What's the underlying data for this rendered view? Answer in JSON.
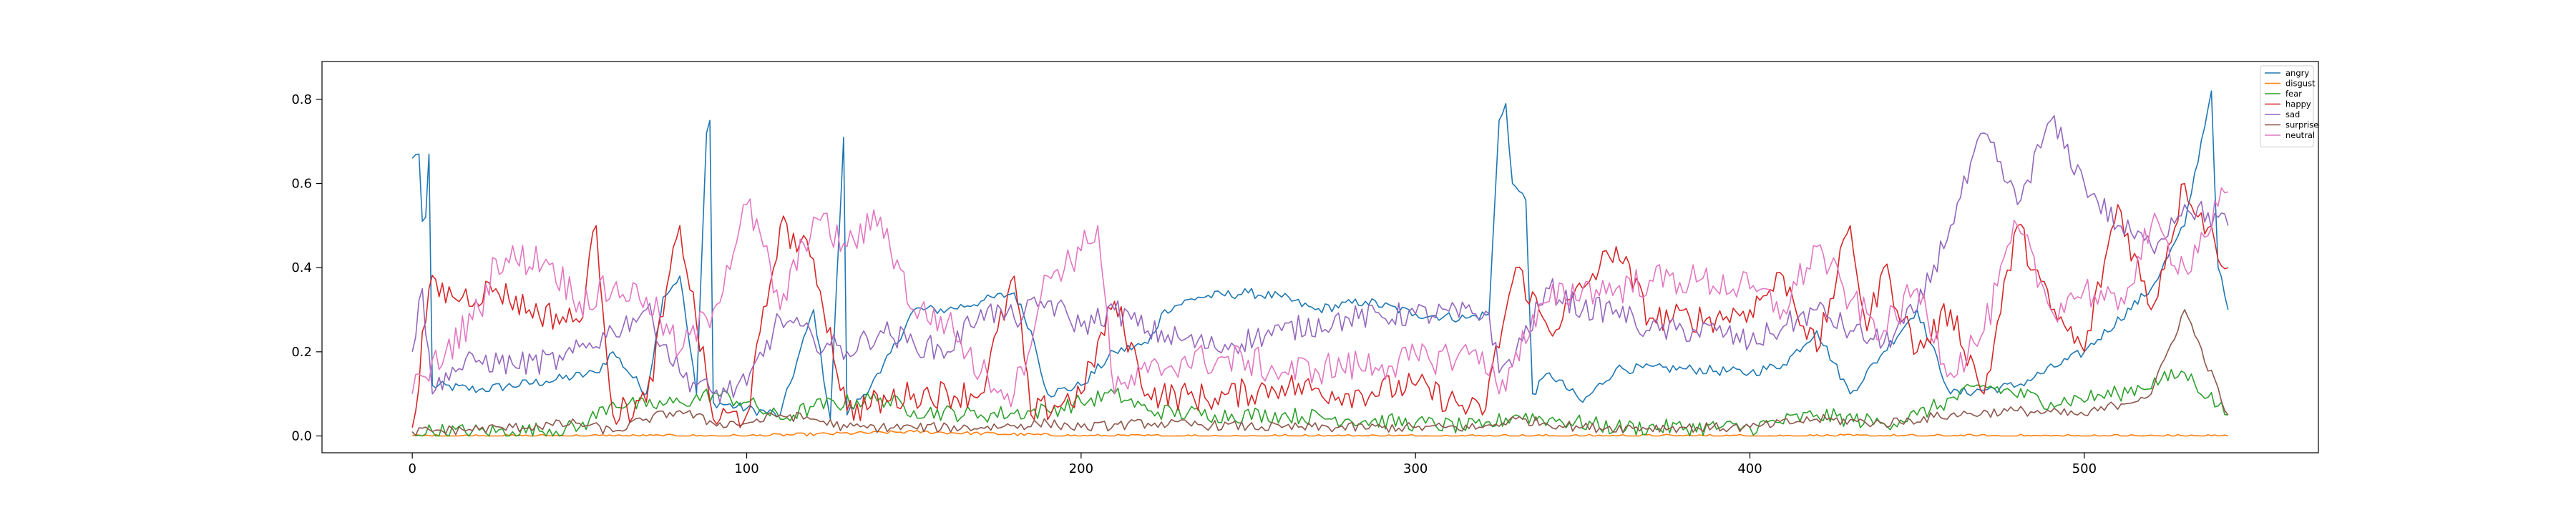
{
  "chart_data": {
    "type": "line",
    "title": "",
    "xlabel": "",
    "ylabel": "",
    "xlim": [
      -27,
      570
    ],
    "ylim": [
      -0.04,
      0.89
    ],
    "xticks": [
      0,
      100,
      200,
      300,
      400,
      500
    ],
    "yticks": [
      0.0,
      0.2,
      0.4,
      0.6,
      0.8
    ],
    "x_ticklabels": [
      "0",
      "100",
      "200",
      "300",
      "400",
      "500"
    ],
    "y_ticklabels": [
      "0.0",
      "0.2",
      "0.4",
      "0.6",
      "0.8"
    ],
    "grid": false,
    "legend_position": "top-right",
    "x_count": 544,
    "series": [
      {
        "name": "angry",
        "color": "#1f77b4",
        "keyframes": [
          [
            0,
            0.66
          ],
          [
            2,
            0.67
          ],
          [
            3,
            0.51
          ],
          [
            4,
            0.52
          ],
          [
            5,
            0.67
          ],
          [
            6,
            0.12
          ],
          [
            20,
            0.11
          ],
          [
            40,
            0.13
          ],
          [
            55,
            0.15
          ],
          [
            60,
            0.2
          ],
          [
            70,
            0.1
          ],
          [
            75,
            0.33
          ],
          [
            80,
            0.38
          ],
          [
            85,
            0.1
          ],
          [
            88,
            0.72
          ],
          [
            89,
            0.75
          ],
          [
            90,
            0.08
          ],
          [
            110,
            0.05
          ],
          [
            120,
            0.3
          ],
          [
            125,
            0.04
          ],
          [
            129,
            0.71
          ],
          [
            130,
            0.05
          ],
          [
            140,
            0.15
          ],
          [
            150,
            0.3
          ],
          [
            160,
            0.3
          ],
          [
            170,
            0.32
          ],
          [
            180,
            0.34
          ],
          [
            185,
            0.25
          ],
          [
            190,
            0.1
          ],
          [
            200,
            0.12
          ],
          [
            210,
            0.2
          ],
          [
            220,
            0.22
          ],
          [
            225,
            0.3
          ],
          [
            235,
            0.33
          ],
          [
            250,
            0.34
          ],
          [
            260,
            0.33
          ],
          [
            270,
            0.3
          ],
          [
            285,
            0.32
          ],
          [
            300,
            0.29
          ],
          [
            315,
            0.28
          ],
          [
            322,
            0.29
          ],
          [
            325,
            0.75
          ],
          [
            327,
            0.79
          ],
          [
            329,
            0.6
          ],
          [
            333,
            0.56
          ],
          [
            335,
            0.1
          ],
          [
            340,
            0.15
          ],
          [
            350,
            0.08
          ],
          [
            360,
            0.16
          ],
          [
            380,
            0.16
          ],
          [
            400,
            0.15
          ],
          [
            410,
            0.17
          ],
          [
            420,
            0.25
          ],
          [
            430,
            0.1
          ],
          [
            440,
            0.2
          ],
          [
            450,
            0.3
          ],
          [
            460,
            0.1
          ],
          [
            480,
            0.12
          ],
          [
            500,
            0.2
          ],
          [
            520,
            0.35
          ],
          [
            530,
            0.5
          ],
          [
            538,
            0.82
          ],
          [
            540,
            0.4
          ],
          [
            543,
            0.3
          ]
        ],
        "amp": 0.012
      },
      {
        "name": "disgust",
        "color": "#ff7f0e",
        "keyframes": [
          [
            0,
            0.0
          ],
          [
            50,
            0.0
          ],
          [
            100,
            0.0
          ],
          [
            150,
            0.01
          ],
          [
            200,
            0.0
          ],
          [
            250,
            0.0
          ],
          [
            300,
            0.0
          ],
          [
            350,
            0.0
          ],
          [
            400,
            0.0
          ],
          [
            450,
            0.0
          ],
          [
            500,
            0.0
          ],
          [
            543,
            0.0
          ]
        ],
        "amp": 0.004
      },
      {
        "name": "fear",
        "color": "#2ca02c",
        "keyframes": [
          [
            0,
            0.01
          ],
          [
            30,
            0.01
          ],
          [
            50,
            0.02
          ],
          [
            60,
            0.08
          ],
          [
            70,
            0.07
          ],
          [
            80,
            0.08
          ],
          [
            90,
            0.1
          ],
          [
            100,
            0.08
          ],
          [
            110,
            0.04
          ],
          [
            120,
            0.07
          ],
          [
            140,
            0.09
          ],
          [
            150,
            0.06
          ],
          [
            170,
            0.05
          ],
          [
            190,
            0.06
          ],
          [
            200,
            0.08
          ],
          [
            210,
            0.1
          ],
          [
            220,
            0.06
          ],
          [
            240,
            0.05
          ],
          [
            260,
            0.05
          ],
          [
            280,
            0.04
          ],
          [
            300,
            0.03
          ],
          [
            320,
            0.02
          ],
          [
            330,
            0.05
          ],
          [
            340,
            0.04
          ],
          [
            360,
            0.02
          ],
          [
            400,
            0.02
          ],
          [
            420,
            0.05
          ],
          [
            440,
            0.03
          ],
          [
            450,
            0.05
          ],
          [
            470,
            0.12
          ],
          [
            490,
            0.08
          ],
          [
            510,
            0.1
          ],
          [
            530,
            0.15
          ],
          [
            543,
            0.05
          ]
        ],
        "amp": 0.02
      },
      {
        "name": "happy",
        "color": "#d62728",
        "keyframes": [
          [
            0,
            0.02
          ],
          [
            5,
            0.35
          ],
          [
            15,
            0.33
          ],
          [
            25,
            0.35
          ],
          [
            35,
            0.3
          ],
          [
            50,
            0.27
          ],
          [
            55,
            0.5
          ],
          [
            60,
            0.05
          ],
          [
            70,
            0.08
          ],
          [
            80,
            0.5
          ],
          [
            90,
            0.04
          ],
          [
            100,
            0.05
          ],
          [
            110,
            0.5
          ],
          [
            120,
            0.42
          ],
          [
            130,
            0.06
          ],
          [
            150,
            0.1
          ],
          [
            170,
            0.1
          ],
          [
            180,
            0.38
          ],
          [
            185,
            0.05
          ],
          [
            200,
            0.1
          ],
          [
            210,
            0.32
          ],
          [
            220,
            0.1
          ],
          [
            240,
            0.09
          ],
          [
            260,
            0.12
          ],
          [
            280,
            0.1
          ],
          [
            300,
            0.12
          ],
          [
            320,
            0.05
          ],
          [
            330,
            0.4
          ],
          [
            340,
            0.25
          ],
          [
            350,
            0.35
          ],
          [
            360,
            0.45
          ],
          [
            370,
            0.28
          ],
          [
            390,
            0.28
          ],
          [
            400,
            0.3
          ],
          [
            410,
            0.38
          ],
          [
            420,
            0.2
          ],
          [
            430,
            0.5
          ],
          [
            435,
            0.25
          ],
          [
            440,
            0.4
          ],
          [
            450,
            0.2
          ],
          [
            460,
            0.3
          ],
          [
            470,
            0.1
          ],
          [
            480,
            0.5
          ],
          [
            490,
            0.3
          ],
          [
            500,
            0.2
          ],
          [
            510,
            0.55
          ],
          [
            520,
            0.3
          ],
          [
            530,
            0.6
          ],
          [
            543,
            0.4
          ]
        ],
        "amp": 0.035
      },
      {
        "name": "sad",
        "color": "#9467bd",
        "keyframes": [
          [
            0,
            0.2
          ],
          [
            3,
            0.35
          ],
          [
            6,
            0.1
          ],
          [
            10,
            0.15
          ],
          [
            20,
            0.18
          ],
          [
            30,
            0.17
          ],
          [
            45,
            0.18
          ],
          [
            60,
            0.25
          ],
          [
            70,
            0.3
          ],
          [
            80,
            0.15
          ],
          [
            90,
            0.1
          ],
          [
            100,
            0.12
          ],
          [
            110,
            0.28
          ],
          [
            120,
            0.23
          ],
          [
            130,
            0.2
          ],
          [
            140,
            0.25
          ],
          [
            150,
            0.22
          ],
          [
            160,
            0.2
          ],
          [
            170,
            0.3
          ],
          [
            180,
            0.28
          ],
          [
            190,
            0.32
          ],
          [
            200,
            0.26
          ],
          [
            210,
            0.3
          ],
          [
            220,
            0.25
          ],
          [
            240,
            0.21
          ],
          [
            260,
            0.25
          ],
          [
            280,
            0.28
          ],
          [
            300,
            0.29
          ],
          [
            322,
            0.29
          ],
          [
            325,
            0.15
          ],
          [
            330,
            0.2
          ],
          [
            340,
            0.35
          ],
          [
            350,
            0.3
          ],
          [
            360,
            0.3
          ],
          [
            370,
            0.25
          ],
          [
            390,
            0.25
          ],
          [
            400,
            0.22
          ],
          [
            410,
            0.26
          ],
          [
            420,
            0.3
          ],
          [
            430,
            0.25
          ],
          [
            440,
            0.22
          ],
          [
            450,
            0.3
          ],
          [
            460,
            0.5
          ],
          [
            470,
            0.72
          ],
          [
            480,
            0.55
          ],
          [
            490,
            0.75
          ],
          [
            500,
            0.6
          ],
          [
            510,
            0.5
          ],
          [
            520,
            0.45
          ],
          [
            530,
            0.55
          ],
          [
            543,
            0.5
          ]
        ],
        "amp": 0.03
      },
      {
        "name": "surprise",
        "color": "#8c564b",
        "keyframes": [
          [
            0,
            0.01
          ],
          [
            30,
            0.02
          ],
          [
            50,
            0.03
          ],
          [
            60,
            0.01
          ],
          [
            70,
            0.04
          ],
          [
            80,
            0.06
          ],
          [
            90,
            0.03
          ],
          [
            100,
            0.03
          ],
          [
            110,
            0.05
          ],
          [
            120,
            0.04
          ],
          [
            130,
            0.02
          ],
          [
            150,
            0.02
          ],
          [
            170,
            0.02
          ],
          [
            190,
            0.03
          ],
          [
            200,
            0.02
          ],
          [
            220,
            0.03
          ],
          [
            260,
            0.02
          ],
          [
            300,
            0.02
          ],
          [
            320,
            0.02
          ],
          [
            330,
            0.04
          ],
          [
            350,
            0.02
          ],
          [
            400,
            0.02
          ],
          [
            420,
            0.04
          ],
          [
            440,
            0.03
          ],
          [
            460,
            0.05
          ],
          [
            480,
            0.06
          ],
          [
            500,
            0.05
          ],
          [
            520,
            0.1
          ],
          [
            530,
            0.3
          ],
          [
            543,
            0.05
          ]
        ],
        "amp": 0.012
      },
      {
        "name": "neutral",
        "color": "#e377c2",
        "keyframes": [
          [
            0,
            0.1
          ],
          [
            10,
            0.2
          ],
          [
            20,
            0.3
          ],
          [
            25,
            0.42
          ],
          [
            40,
            0.42
          ],
          [
            50,
            0.32
          ],
          [
            60,
            0.35
          ],
          [
            70,
            0.33
          ],
          [
            80,
            0.2
          ],
          [
            90,
            0.3
          ],
          [
            100,
            0.55
          ],
          [
            105,
            0.45
          ],
          [
            110,
            0.3
          ],
          [
            120,
            0.52
          ],
          [
            130,
            0.45
          ],
          [
            140,
            0.52
          ],
          [
            150,
            0.3
          ],
          [
            160,
            0.27
          ],
          [
            170,
            0.15
          ],
          [
            180,
            0.1
          ],
          [
            190,
            0.38
          ],
          [
            200,
            0.44
          ],
          [
            205,
            0.5
          ],
          [
            210,
            0.1
          ],
          [
            220,
            0.15
          ],
          [
            230,
            0.18
          ],
          [
            250,
            0.18
          ],
          [
            260,
            0.15
          ],
          [
            270,
            0.16
          ],
          [
            290,
            0.17
          ],
          [
            310,
            0.19
          ],
          [
            320,
            0.2
          ],
          [
            325,
            0.1
          ],
          [
            330,
            0.2
          ],
          [
            340,
            0.32
          ],
          [
            350,
            0.35
          ],
          [
            360,
            0.35
          ],
          [
            370,
            0.37
          ],
          [
            385,
            0.37
          ],
          [
            400,
            0.35
          ],
          [
            410,
            0.3
          ],
          [
            420,
            0.45
          ],
          [
            430,
            0.32
          ],
          [
            440,
            0.25
          ],
          [
            450,
            0.35
          ],
          [
            460,
            0.15
          ],
          [
            470,
            0.25
          ],
          [
            480,
            0.5
          ],
          [
            490,
            0.3
          ],
          [
            500,
            0.35
          ],
          [
            510,
            0.3
          ],
          [
            520,
            0.5
          ],
          [
            530,
            0.4
          ],
          [
            543,
            0.58
          ]
        ],
        "amp": 0.04
      }
    ]
  }
}
